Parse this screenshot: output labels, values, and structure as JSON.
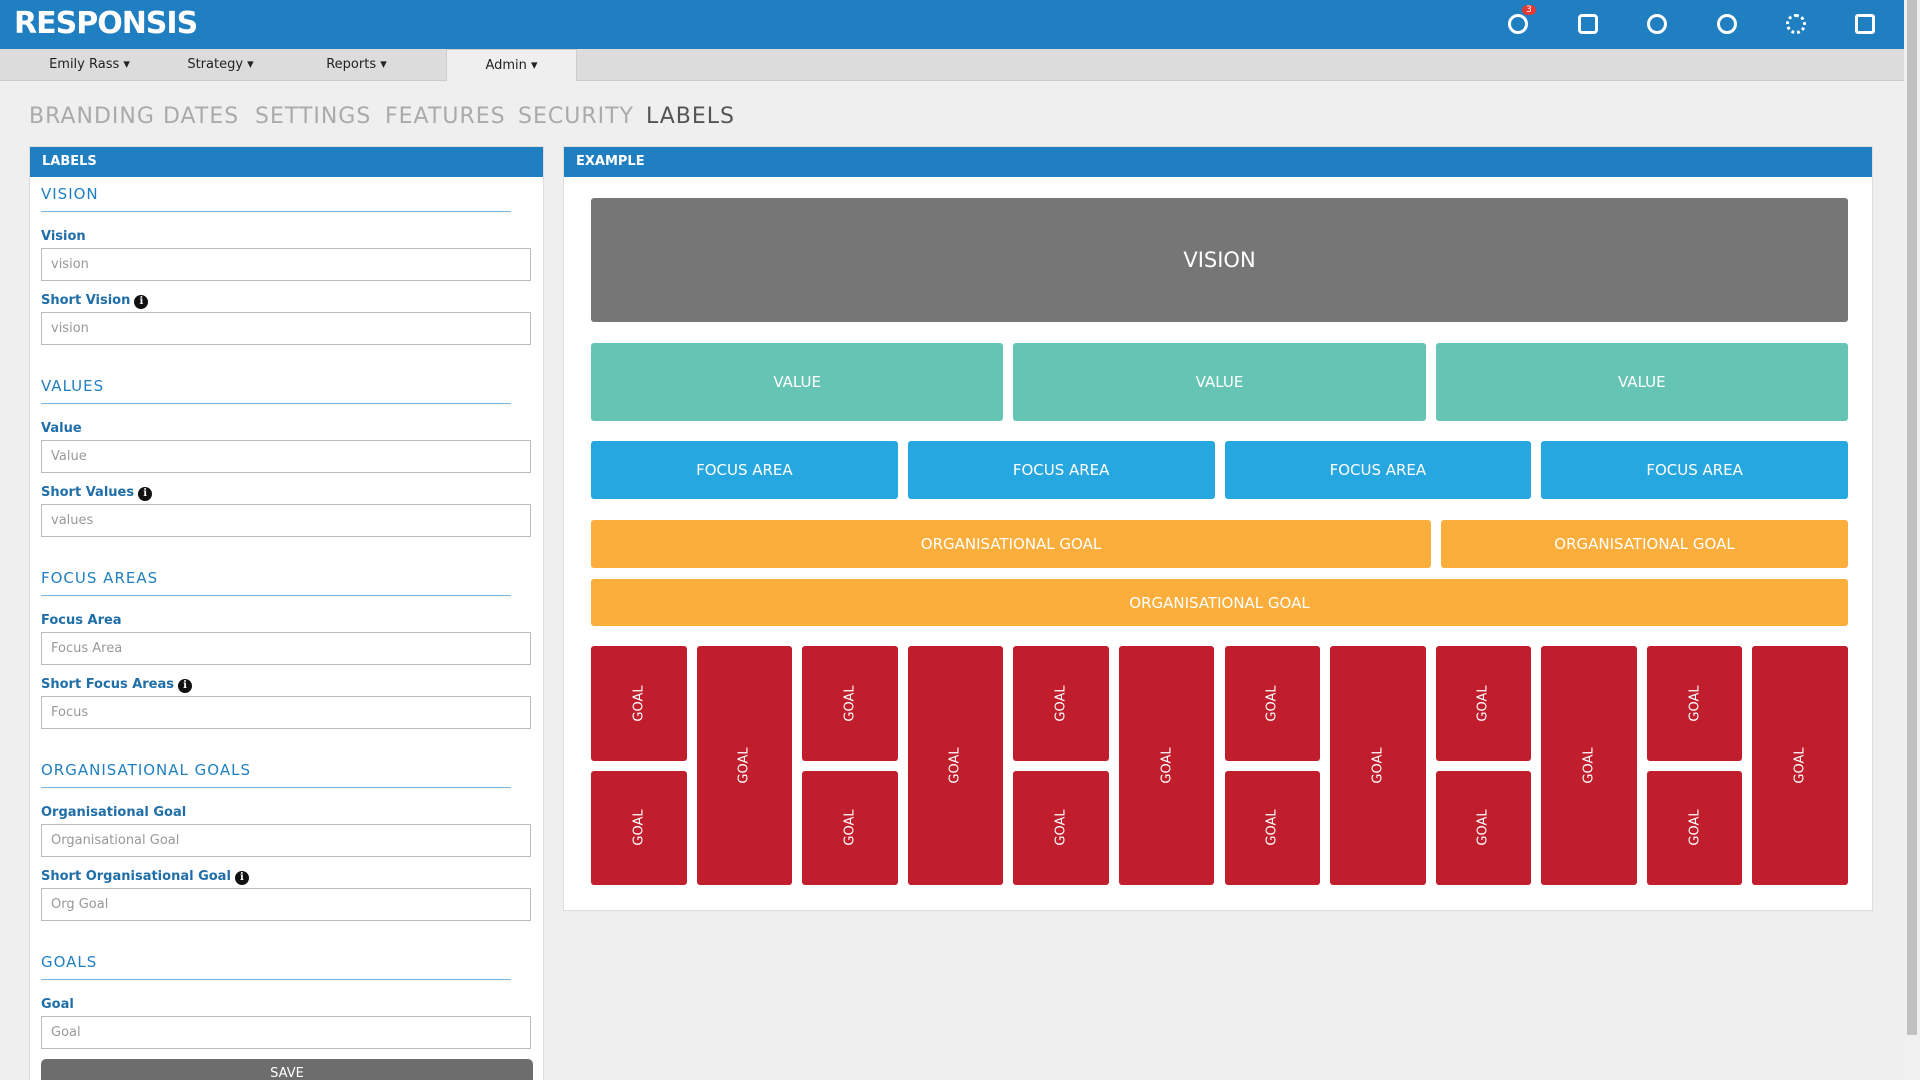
{
  "header": {
    "brand": "RESPONSIS",
    "badge": "3"
  },
  "nav": [
    "Emily Rass",
    "Strategy",
    "Reports",
    "Admin"
  ],
  "tabs": [
    "BRANDING",
    "DATES",
    "SETTINGS",
    "FEATURES",
    "SECURITY",
    "LABELS"
  ],
  "labels_panel": {
    "title": "LABELS",
    "sections": [
      {
        "heading": "VISION",
        "fields": [
          {
            "label": "Vision",
            "placeholder": "vision"
          },
          {
            "label": "Short Vision",
            "placeholder": "vision",
            "info": true
          }
        ]
      },
      {
        "heading": "VALUES",
        "fields": [
          {
            "label": "Value",
            "placeholder": "Value"
          },
          {
            "label": "Short Values",
            "placeholder": "values",
            "info": true
          }
        ]
      },
      {
        "heading": "FOCUS AREAS",
        "fields": [
          {
            "label": "Focus Area",
            "placeholder": "Focus Area"
          },
          {
            "label": "Short Focus Areas",
            "placeholder": "Focus",
            "info": true
          }
        ]
      },
      {
        "heading": "ORGANISATIONAL GOALS",
        "fields": [
          {
            "label": "Organisational Goal",
            "placeholder": "Organisational Goal"
          },
          {
            "label": "Short Organisational Goal",
            "placeholder": "Org Goal",
            "info": true
          }
        ]
      },
      {
        "heading": "GOALS",
        "fields": [
          {
            "label": "Goal",
            "placeholder": "Goal"
          }
        ]
      }
    ],
    "save": "SAVE"
  },
  "example_panel": {
    "title": "EXAMPLE",
    "vision": "VISION",
    "values": [
      "VALUE",
      "VALUE",
      "VALUE"
    ],
    "focus_areas": [
      "FOCUS AREA",
      "FOCUS AREA",
      "FOCUS AREA",
      "FOCUS AREA"
    ],
    "org_goals": [
      [
        "ORGANISATIONAL GOAL",
        "ORGANISATIONAL GOAL"
      ],
      [
        "ORGANISATIONAL GOAL"
      ]
    ],
    "goals": [
      [
        "GOAL",
        "GOAL"
      ],
      [
        "GOAL"
      ],
      [
        "GOAL",
        "GOAL"
      ],
      [
        "GOAL"
      ],
      [
        "GOAL",
        "GOAL"
      ],
      [
        "GOAL"
      ],
      [
        "GOAL",
        "GOAL"
      ],
      [
        "GOAL"
      ],
      [
        "GOAL",
        "GOAL"
      ],
      [
        "GOAL"
      ],
      [
        "GOAL",
        "GOAL"
      ],
      [
        "GOAL"
      ]
    ]
  }
}
